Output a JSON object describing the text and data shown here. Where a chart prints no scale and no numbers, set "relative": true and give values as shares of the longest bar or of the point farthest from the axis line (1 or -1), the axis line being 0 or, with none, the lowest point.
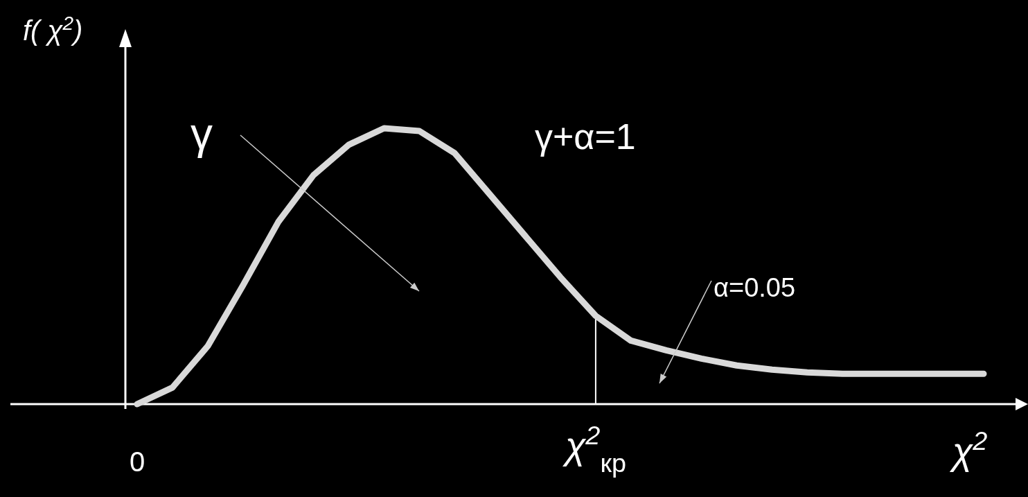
{
  "chart_data": {
    "type": "line",
    "relative": true,
    "xlabel": "χ$^{2}$",
    "ylabel": "f( χ$^{2}$)",
    "categories": [
      "0",
      null,
      null,
      null,
      null,
      null,
      null,
      null,
      null,
      null,
      null,
      null,
      null,
      "χ$^{2}$$_{кр}$",
      null,
      null,
      null,
      null,
      null,
      null,
      null,
      null,
      null,
      null,
      null
    ],
    "series": [
      {
        "color": "#d9d9d9",
        "values": [
          0,
          0.06,
          0.21,
          0.43,
          0.66,
          0.83,
          0.94,
          1,
          0.99,
          0.91,
          0.76,
          0.61,
          0.46,
          0.32,
          0.23,
          0.195,
          0.165,
          0.14,
          0.125,
          0.115,
          0.11,
          0.11,
          0.11,
          0.11,
          0.11
        ]
      }
    ],
    "ref_lines": [
      {
        "axis": "x",
        "value": "χ$^{2}$$_{кр}$",
        "color": "#ffffff"
      }
    ],
    "annotations": [
      "γ",
      "γ+α=1",
      "α=0.05"
    ],
    "legend": false,
    "grid": false,
    "marker": "none",
    "line_style": "solid"
  }
}
